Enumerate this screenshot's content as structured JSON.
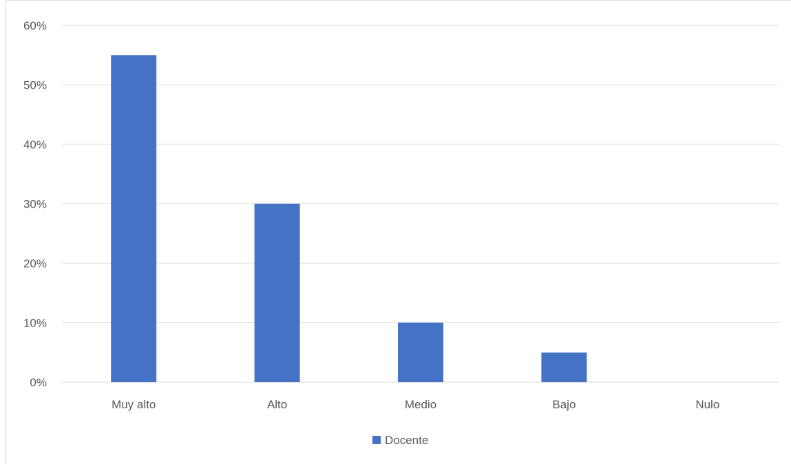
{
  "chart_data": {
    "type": "bar",
    "categories": [
      "Muy alto",
      "Alto",
      "Medio",
      "Bajo",
      "Nulo"
    ],
    "series": [
      {
        "name": "Docente",
        "values": [
          55,
          30,
          10,
          5,
          0
        ]
      }
    ],
    "title": "",
    "xlabel": "",
    "ylabel": "",
    "ylim": [
      0,
      60
    ],
    "yticks": [
      "0%",
      "10%",
      "20%",
      "30%",
      "40%",
      "50%",
      "60%"
    ],
    "grid": true,
    "legend": "bottom-center",
    "bar_color": "#4472C4",
    "grid_color": "#d9d9d9",
    "text_color": "#595959"
  }
}
